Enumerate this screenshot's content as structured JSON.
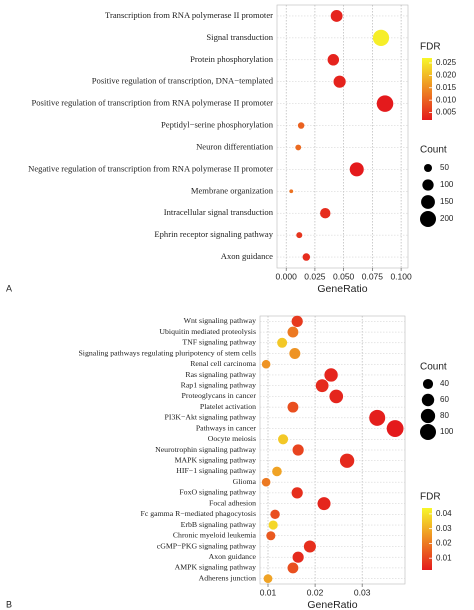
{
  "chart_data": [
    {
      "type": "bubble",
      "panel_label": "A",
      "xlabel": "GeneRatio",
      "categories": [
        "Transcription from RNA polymerase II promoter",
        "Signal transduction",
        "Protein phosphorylation",
        "Positive regulation of transcription, DNA−templated",
        "Positive regulation of transcription from RNA polymerase II promoter",
        "Peptidyl−serine phosphorylation",
        "Neuron differentiation",
        "Negative regulation of transcription from RNA polymerase II promoter",
        "Membrane organization",
        "Intracellular signal transduction",
        "Ephrin receptor signaling pathway",
        "Axon guidance"
      ],
      "values": [
        0.0439,
        0.0825,
        0.041,
        0.0465,
        0.086,
        0.013,
        0.0105,
        0.0614,
        0.0044,
        0.034,
        0.0114,
        0.0175
      ],
      "counts": [
        110,
        206,
        103,
        116,
        215,
        33,
        26,
        154,
        11,
        85,
        28,
        44
      ],
      "fdr": [
        0.003,
        0.026,
        0.003,
        0.003,
        0.002,
        0.01,
        0.011,
        0.002,
        0.012,
        0.004,
        0.005,
        0.004
      ],
      "xlim": [
        -0.008,
        0.106
      ],
      "xticks": [
        {
          "value": 0,
          "label": "0.000"
        },
        0.025,
        {
          "value": 0.05,
          "label": "0.050"
        },
        0.075,
        {
          "value": 0.1,
          "label": "0.100"
        }
      ],
      "grid": true,
      "size_legend_title": "Count",
      "size_ticks": [
        50,
        100,
        150,
        200
      ],
      "color_legend_title": "FDR",
      "color_lim": [
        0.002,
        0.027
      ],
      "color_ticks": [
        0.005,
        {
          "value": 0.01,
          "label": "0.010"
        },
        0.015,
        {
          "value": 0.02,
          "label": "0.020"
        },
        0.025
      ],
      "color_range": [
        "#e41a1c",
        "#f7f72a"
      ]
    },
    {
      "type": "bubble",
      "panel_label": "B",
      "xlabel": "GeneRatio",
      "categories": [
        "Wnt signaling pathway",
        "Ubiquitin mediated proteolysis",
        "TNF signaling pathway",
        "Signaling pathways regulating pluripotency of stem cells",
        "Renal cell carcinoma",
        "Ras signaling pathway",
        "Rap1 signaling pathway",
        "Proteoglycans in cancer",
        "Platelet activation",
        "PI3K−Akt signaling pathway",
        "Pathways in cancer",
        "Oocyte meiosis",
        "Neurotrophin signaling pathway",
        "MAPK signaling pathway",
        "HIF−1 signaling pathway",
        "Glioma",
        "FoxO signaling pathway",
        "Focal adhesion",
        "Fc gamma R−mediated phagocytosis",
        "ErbB signaling pathway",
        "Chronic myeloid leukemia",
        "cGMP−PKG signaling pathway",
        "Axon guidance",
        "AMPK signaling pathway",
        "Adherens junction"
      ],
      "values": [
        0.0162,
        0.0153,
        0.013,
        0.0157,
        0.0096,
        0.0234,
        0.0215,
        0.0245,
        0.0153,
        0.0332,
        0.037,
        0.0132,
        0.0164,
        0.0268,
        0.0119,
        0.0096,
        0.0162,
        0.0219,
        0.0115,
        0.0111,
        0.0106,
        0.0189,
        0.0164,
        0.0153,
        0.01
      ],
      "counts": [
        49,
        46,
        39,
        47,
        29,
        70,
        64,
        73,
        46,
        100,
        111,
        40,
        49,
        80,
        36,
        29,
        49,
        66,
        35,
        33,
        32,
        57,
        49,
        46,
        30
      ],
      "fdr": [
        0.008,
        0.02,
        0.035,
        0.025,
        0.025,
        0.004,
        0.005,
        0.004,
        0.012,
        0.003,
        0.002,
        0.035,
        0.01,
        0.005,
        0.028,
        0.02,
        0.006,
        0.004,
        0.012,
        0.038,
        0.014,
        0.006,
        0.005,
        0.012,
        0.028
      ],
      "xlim": [
        0.0083,
        0.0391
      ],
      "xticks": [
        0.01,
        0.02,
        0.03
      ],
      "grid": true,
      "size_legend_title": "Count",
      "size_ticks": [
        40,
        60,
        80,
        100
      ],
      "color_legend_title": "FDR",
      "color_lim": [
        0.002,
        0.044
      ],
      "color_ticks": [
        0.01,
        0.02,
        0.03,
        0.04
      ],
      "color_range": [
        "#e41a1c",
        "#f7f72a"
      ]
    }
  ]
}
